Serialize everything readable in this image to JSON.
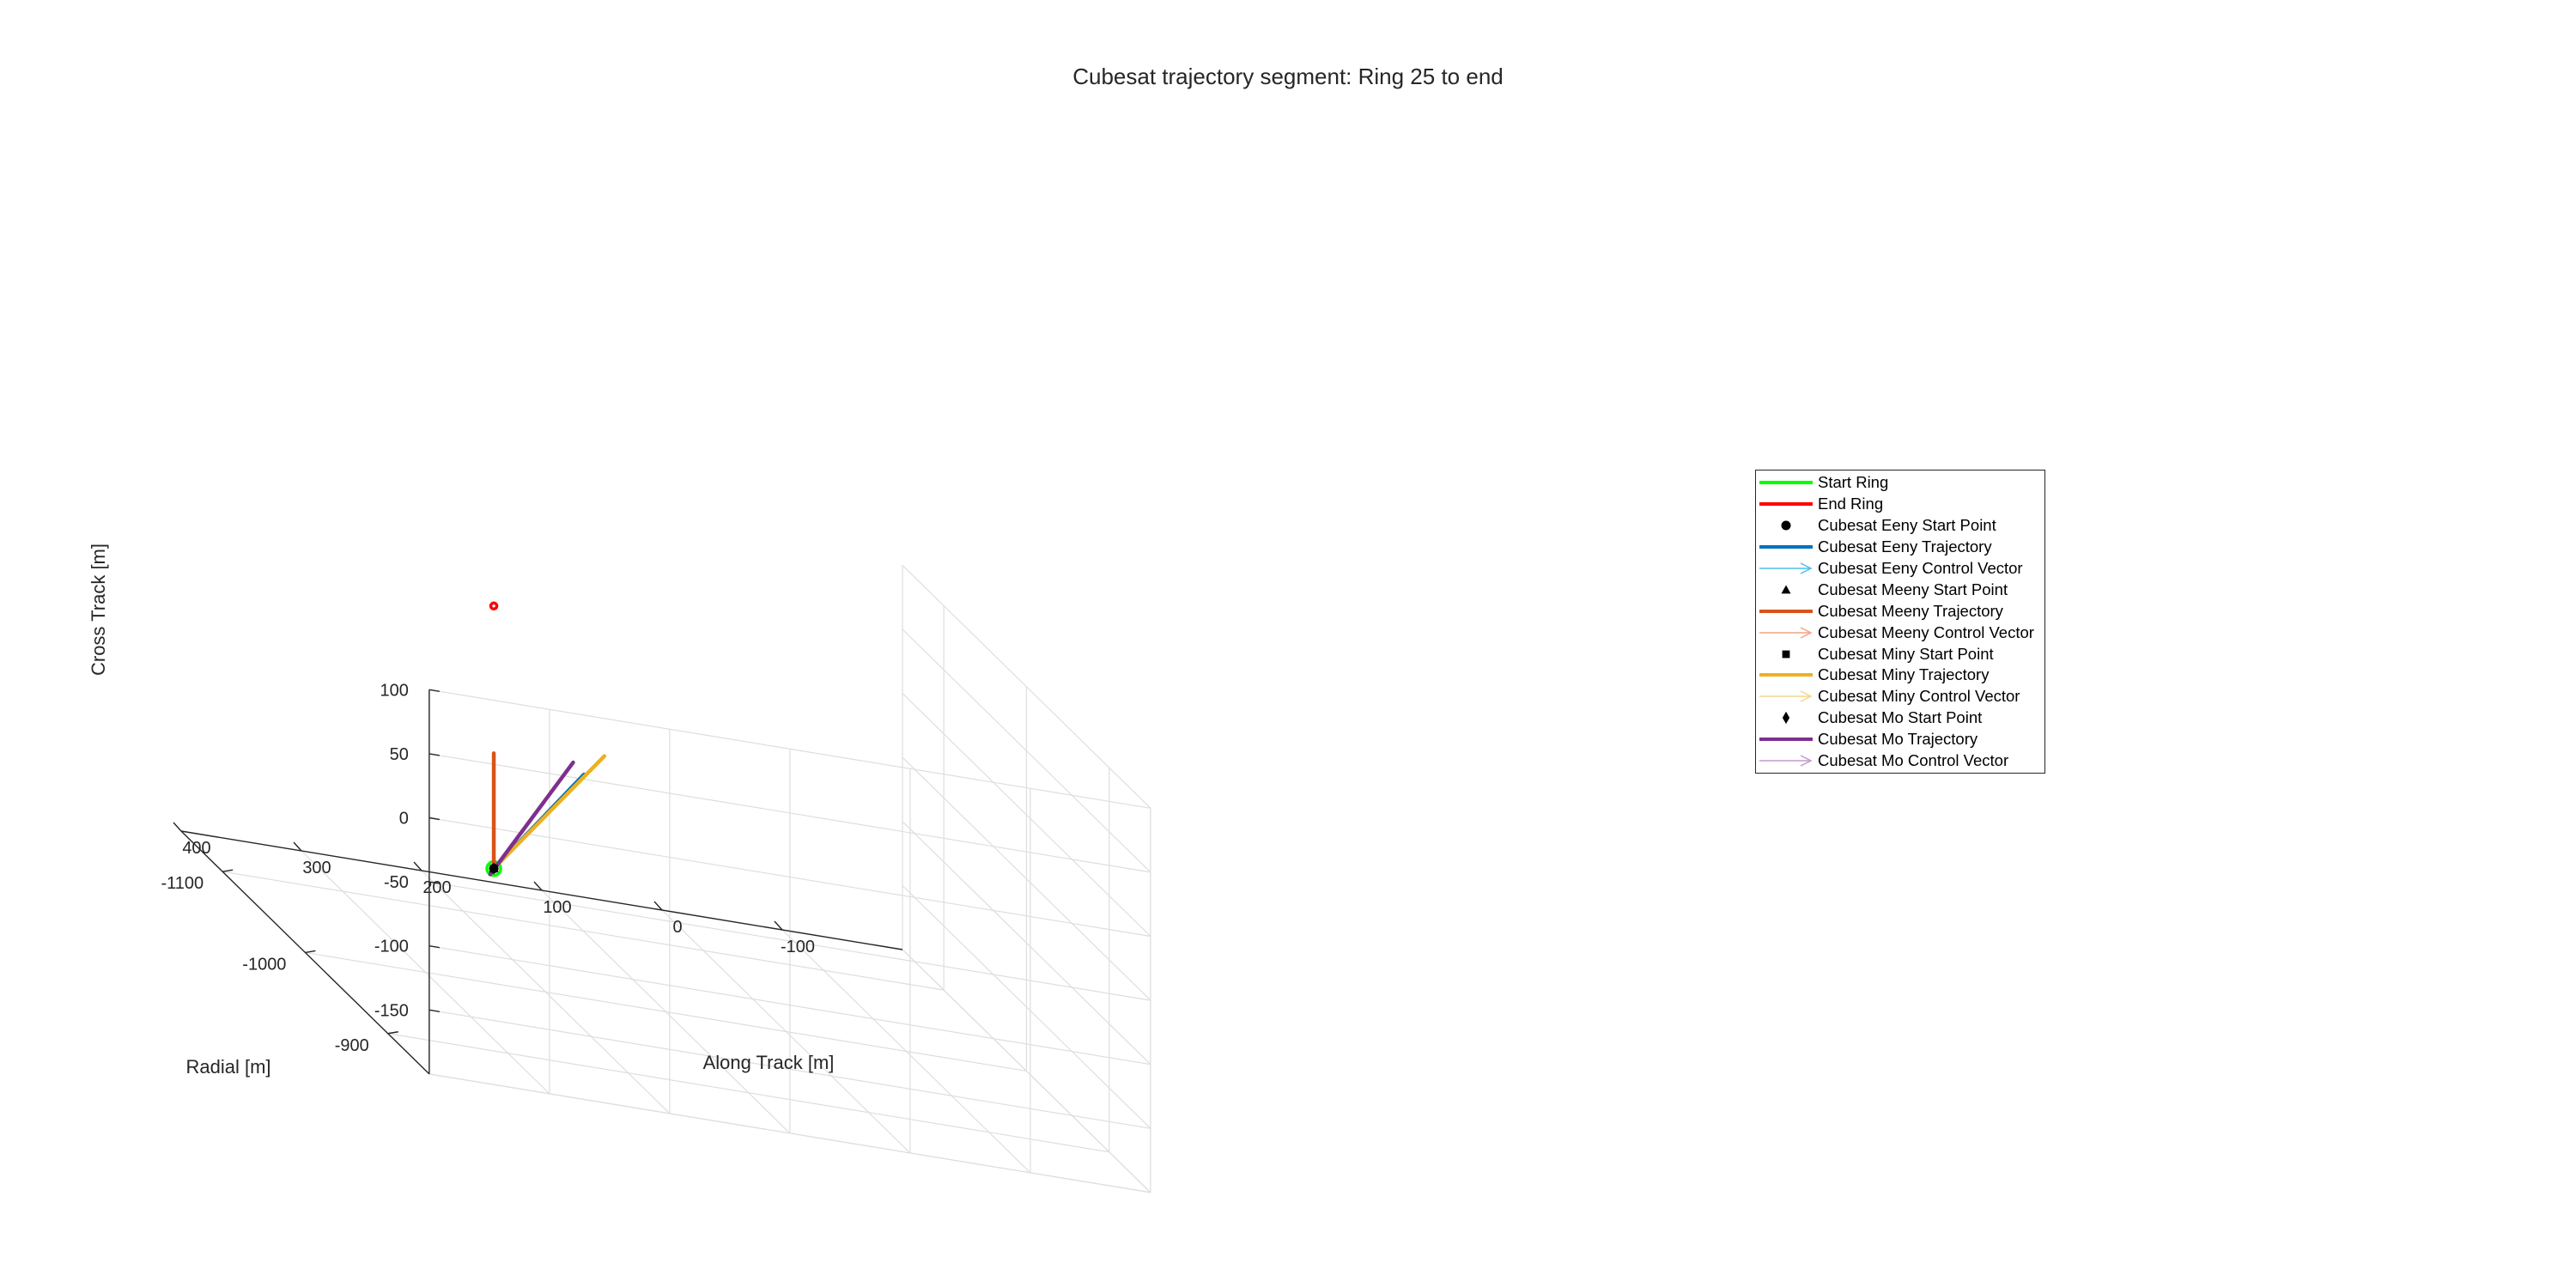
{
  "chart_data": {
    "type": "line",
    "projection": "3d",
    "title": "Cubesat trajectory segment: Ring 25 to end",
    "xlabel": "Along Track [m]",
    "ylabel": "Radial [m]",
    "zlabel": "Cross Track [m]",
    "xlim": [
      -200,
      400
    ],
    "ylim": [
      -1150,
      -850
    ],
    "zlim": [
      -200,
      100
    ],
    "xticks": [
      -100,
      0,
      100,
      200,
      300,
      400
    ],
    "xtick_labels": [
      "-100",
      "0",
      "100",
      "200",
      "300",
      "400"
    ],
    "yticks": [
      -900,
      -1000,
      -1100
    ],
    "ytick_labels": [
      "-900",
      "-1000",
      "-1100"
    ],
    "zticks": [
      100,
      50,
      0,
      -50,
      -100,
      -150
    ],
    "ztick_labels": [
      "100",
      "50",
      "0",
      "-50",
      "-100",
      "-150"
    ],
    "grid": true,
    "legend_position": "right, outside axes",
    "series": [
      {
        "name": "Start Ring",
        "kind": "line",
        "color": "#00ff00",
        "points": [
          [
            250,
            -990,
            -105
          ]
        ]
      },
      {
        "name": "End Ring",
        "kind": "line",
        "color": "#ff0000",
        "points": [
          [
            250,
            -990,
            100
          ]
        ]
      },
      {
        "name": "Cubesat Eeny Start Point",
        "kind": "marker",
        "marker": "circle",
        "color": "#000000",
        "points": [
          [
            250,
            -990,
            -105
          ]
        ]
      },
      {
        "name": "Cubesat Eeny Trajectory",
        "kind": "line",
        "color": "#0072bd",
        "points": [
          [
            250,
            -990,
            -105
          ],
          [
            175,
            -990,
            -20
          ]
        ]
      },
      {
        "name": "Cubesat Eeny Control Vector",
        "kind": "vector",
        "color": "#4dbeee",
        "points": []
      },
      {
        "name": "Cubesat Meeny Start Point",
        "kind": "marker",
        "marker": "triangle",
        "color": "#000000",
        "points": [
          [
            250,
            -990,
            -105
          ]
        ]
      },
      {
        "name": "Cubesat Meeny Trajectory",
        "kind": "line",
        "color": "#d95319",
        "points": [
          [
            250,
            -990,
            -105
          ],
          [
            250,
            -990,
            -15
          ]
        ]
      },
      {
        "name": "Cubesat Meeny Control Vector",
        "kind": "vector",
        "color": "#f3a487",
        "points": []
      },
      {
        "name": "Cubesat Miny Start Point",
        "kind": "marker",
        "marker": "square",
        "color": "#000000",
        "points": [
          [
            250,
            -990,
            -105
          ]
        ]
      },
      {
        "name": "Cubesat Miny Trajectory",
        "kind": "line",
        "color": "#edb120",
        "points": [
          [
            250,
            -990,
            -105
          ],
          [
            158,
            -990,
            -3
          ]
        ]
      },
      {
        "name": "Cubesat Miny Control Vector",
        "kind": "vector",
        "color": "#f6d68a",
        "points": []
      },
      {
        "name": "Cubesat Mo Start Point",
        "kind": "marker",
        "marker": "diamond",
        "color": "#000000",
        "points": [
          [
            250,
            -990,
            -105
          ]
        ]
      },
      {
        "name": "Cubesat Mo Trajectory",
        "kind": "line",
        "color": "#7e2f8e",
        "points": [
          [
            253,
            -990,
            -110
          ],
          [
            184,
            -990,
            -12
          ]
        ]
      },
      {
        "name": "Cubesat Mo Control Vector",
        "kind": "vector",
        "color": "#c39bce",
        "points": []
      }
    ]
  },
  "colors": {
    "axis": "#262626",
    "grid": "#dedede",
    "background": "#ffffff"
  }
}
